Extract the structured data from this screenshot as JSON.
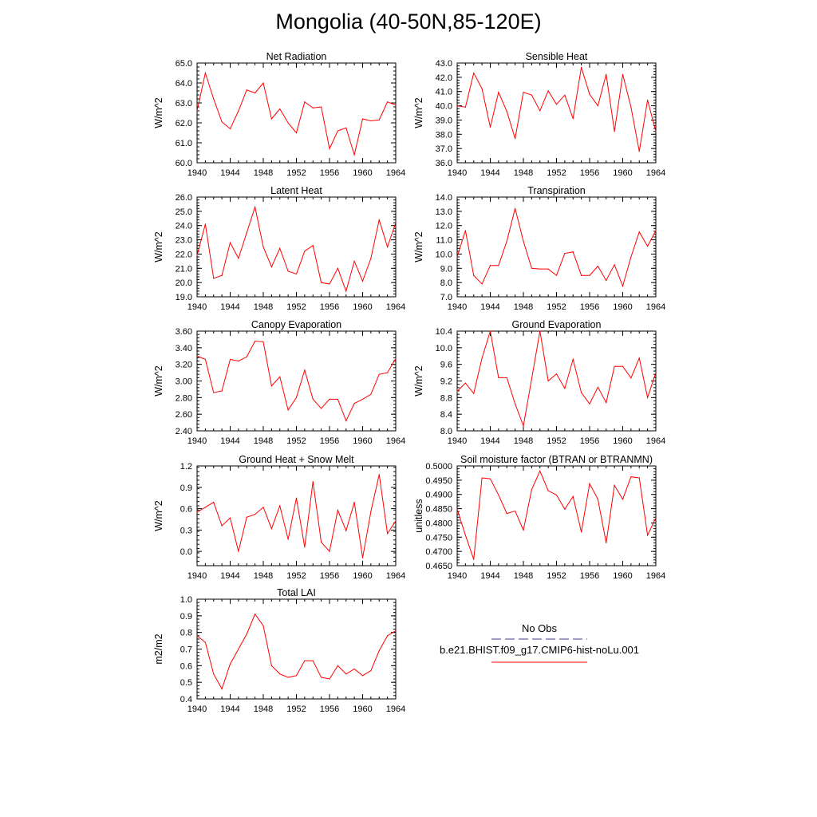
{
  "page_title": "Mongolia (40-50N,85-120E)",
  "legend": {
    "obs_label": "No Obs",
    "model_label": "b.e21.BHIST.f09_g17.CMIP6-hist-noLu.001",
    "obs_color": "#3c3c8c",
    "model_color": "#ff0000"
  },
  "colors": {
    "line": "#ff0000",
    "axis": "#000000"
  },
  "chart_data": [
    {
      "type": "line",
      "title": "Net Radiation",
      "ylabel": "W/m^2",
      "x": [
        1940,
        1941,
        1942,
        1943,
        1944,
        1945,
        1946,
        1947,
        1948,
        1949,
        1950,
        1951,
        1952,
        1953,
        1954,
        1955,
        1956,
        1957,
        1958,
        1959,
        1960,
        1961,
        1962,
        1963,
        1964
      ],
      "values": [
        62.6,
        64.5,
        63.2,
        62.05,
        61.7,
        62.6,
        63.65,
        63.5,
        64.0,
        62.2,
        62.7,
        62.0,
        61.5,
        63.05,
        62.75,
        62.8,
        60.7,
        61.6,
        61.75,
        60.4,
        62.2,
        62.1,
        62.15,
        63.05,
        62.9
      ],
      "xlim": [
        1940,
        1964
      ],
      "ylim": [
        60.0,
        65.0
      ],
      "xticks": [
        "1940",
        "1944",
        "1948",
        "1952",
        "1956",
        "1960",
        "1964"
      ],
      "yticks": [
        "60.0",
        "61.0",
        "62.0",
        "63.0",
        "64.0",
        "65.0"
      ]
    },
    {
      "type": "line",
      "title": "Sensible Heat",
      "ylabel": "W/m^2",
      "x": [
        1940,
        1941,
        1942,
        1943,
        1944,
        1945,
        1946,
        1947,
        1948,
        1949,
        1950,
        1951,
        1952,
        1953,
        1954,
        1955,
        1956,
        1957,
        1958,
        1959,
        1960,
        1961,
        1962,
        1963,
        1964
      ],
      "values": [
        40.0,
        39.9,
        42.3,
        41.2,
        38.5,
        40.95,
        39.6,
        37.7,
        40.95,
        40.75,
        39.65,
        41.05,
        40.1,
        40.75,
        39.1,
        42.7,
        40.8,
        40.0,
        42.2,
        38.2,
        42.2,
        39.9,
        36.8,
        40.4,
        38.2
      ],
      "xlim": [
        1940,
        1964
      ],
      "ylim": [
        36.0,
        43.0
      ],
      "xticks": [
        "1940",
        "1944",
        "1948",
        "1952",
        "1956",
        "1960",
        "1964"
      ],
      "yticks": [
        "36.0",
        "37.0",
        "38.0",
        "39.0",
        "40.0",
        "41.0",
        "42.0",
        "43.0"
      ]
    },
    {
      "type": "line",
      "title": "Latent Heat",
      "ylabel": "W/m^2",
      "x": [
        1940,
        1941,
        1942,
        1943,
        1944,
        1945,
        1946,
        1947,
        1948,
        1949,
        1950,
        1951,
        1952,
        1953,
        1954,
        1955,
        1956,
        1957,
        1958,
        1959,
        1960,
        1961,
        1962,
        1963,
        1964
      ],
      "values": [
        21.9,
        24.1,
        20.3,
        20.5,
        22.8,
        21.7,
        23.5,
        25.3,
        22.5,
        21.1,
        22.4,
        20.8,
        20.6,
        22.2,
        22.6,
        20.0,
        19.9,
        21.0,
        19.4,
        21.5,
        20.1,
        21.7,
        24.4,
        22.5,
        24.2
      ],
      "xlim": [
        1940,
        1964
      ],
      "ylim": [
        19.0,
        26.0
      ],
      "xticks": [
        "1940",
        "1944",
        "1948",
        "1952",
        "1956",
        "1960",
        "1964"
      ],
      "yticks": [
        "19.0",
        "20.0",
        "21.0",
        "22.0",
        "23.0",
        "24.0",
        "25.0",
        "26.0"
      ]
    },
    {
      "type": "line",
      "title": "Transpiration",
      "ylabel": "W/m^2",
      "x": [
        1940,
        1941,
        1942,
        1943,
        1944,
        1945,
        1946,
        1947,
        1948,
        1949,
        1950,
        1951,
        1952,
        1953,
        1954,
        1955,
        1956,
        1957,
        1958,
        1959,
        1960,
        1961,
        1962,
        1963,
        1964
      ],
      "values": [
        9.8,
        11.65,
        8.5,
        7.9,
        9.2,
        9.2,
        10.9,
        13.2,
        10.9,
        9.0,
        8.95,
        8.95,
        8.5,
        10.05,
        10.15,
        8.5,
        8.5,
        9.15,
        8.15,
        9.25,
        7.75,
        9.8,
        11.55,
        10.55,
        11.65
      ],
      "xlim": [
        1940,
        1964
      ],
      "ylim": [
        7.0,
        14.0
      ],
      "xticks": [
        "1940",
        "1944",
        "1948",
        "1952",
        "1956",
        "1960",
        "1964"
      ],
      "yticks": [
        "7.0",
        "8.0",
        "9.0",
        "10.0",
        "11.0",
        "12.0",
        "13.0",
        "14.0"
      ]
    },
    {
      "type": "line",
      "title": "Canopy Evaporation",
      "ylabel": "W/m^2",
      "x": [
        1940,
        1941,
        1942,
        1943,
        1944,
        1945,
        1946,
        1947,
        1948,
        1949,
        1950,
        1951,
        1952,
        1953,
        1954,
        1955,
        1956,
        1957,
        1958,
        1959,
        1960,
        1961,
        1962,
        1963,
        1964
      ],
      "values": [
        3.3,
        3.26,
        2.86,
        2.88,
        3.26,
        3.24,
        3.29,
        3.48,
        3.47,
        2.94,
        3.05,
        2.65,
        2.8,
        3.13,
        2.78,
        2.67,
        2.78,
        2.78,
        2.52,
        2.73,
        2.78,
        2.84,
        3.08,
        3.1,
        3.27
      ],
      "xlim": [
        1940,
        1964
      ],
      "ylim": [
        2.4,
        3.6
      ],
      "xticks": [
        "1940",
        "1944",
        "1948",
        "1952",
        "1956",
        "1960",
        "1964"
      ],
      "yticks": [
        "2.40",
        "2.60",
        "2.80",
        "3.00",
        "3.20",
        "3.40",
        "3.60"
      ]
    },
    {
      "type": "line",
      "title": "Ground Evaporation",
      "ylabel": "W/m^2",
      "x": [
        1940,
        1941,
        1942,
        1943,
        1944,
        1945,
        1946,
        1947,
        1948,
        1949,
        1950,
        1951,
        1952,
        1953,
        1954,
        1955,
        1956,
        1957,
        1958,
        1959,
        1960,
        1961,
        1962,
        1963,
        1964
      ],
      "values": [
        8.95,
        9.15,
        8.9,
        9.75,
        10.4,
        9.28,
        9.28,
        8.65,
        8.12,
        9.25,
        10.4,
        9.2,
        9.37,
        9.02,
        9.72,
        8.92,
        8.65,
        9.05,
        8.68,
        9.55,
        9.55,
        9.27,
        9.75,
        8.8,
        9.4
      ],
      "xlim": [
        1940,
        1964
      ],
      "ylim": [
        8.0,
        10.4
      ],
      "xticks": [
        "1940",
        "1944",
        "1948",
        "1952",
        "1956",
        "1960",
        "1964"
      ],
      "yticks": [
        "8.0",
        "8.4",
        "8.8",
        "9.2",
        "9.6",
        "10.0",
        "10.4"
      ]
    },
    {
      "type": "line",
      "title": "Ground Heat + Snow Melt",
      "ylabel": "W/m^2",
      "x": [
        1940,
        1941,
        1942,
        1943,
        1944,
        1945,
        1946,
        1947,
        1948,
        1949,
        1950,
        1951,
        1952,
        1953,
        1954,
        1955,
        1956,
        1957,
        1958,
        1959,
        1960,
        1961,
        1962,
        1963,
        1964
      ],
      "values": [
        0.55,
        0.62,
        0.69,
        0.36,
        0.47,
        0.0,
        0.48,
        0.52,
        0.62,
        0.32,
        0.64,
        0.17,
        0.75,
        0.06,
        0.98,
        0.13,
        0.0,
        0.58,
        0.29,
        0.69,
        -0.09,
        0.56,
        1.08,
        0.25,
        0.43
      ],
      "xlim": [
        1940,
        1964
      ],
      "ylim": [
        -0.2,
        1.2
      ],
      "xticks": [
        "1940",
        "1944",
        "1948",
        "1952",
        "1956",
        "1960",
        "1964"
      ],
      "yticks": [
        "0.0",
        "0.3",
        "0.6",
        "0.9",
        "1.2"
      ]
    },
    {
      "type": "line",
      "title": "Soil moisture factor (BTRAN or BTRANMN)",
      "ylabel": "unitless",
      "x": [
        1940,
        1941,
        1942,
        1943,
        1944,
        1945,
        1946,
        1947,
        1948,
        1949,
        1950,
        1951,
        1952,
        1953,
        1954,
        1955,
        1956,
        1957,
        1958,
        1959,
        1960,
        1961,
        1962,
        1963,
        1964
      ],
      "values": [
        0.4848,
        0.4757,
        0.4672,
        0.4958,
        0.4955,
        0.4898,
        0.4833,
        0.4842,
        0.4775,
        0.4917,
        0.4982,
        0.4913,
        0.4898,
        0.4848,
        0.4893,
        0.4768,
        0.4938,
        0.4883,
        0.473,
        0.4932,
        0.4883,
        0.4962,
        0.4958,
        0.4757,
        0.4818
      ],
      "xlim": [
        1940,
        1964
      ],
      "ylim": [
        0.465,
        0.5
      ],
      "xticks": [
        "1940",
        "1944",
        "1948",
        "1952",
        "1956",
        "1960",
        "1964"
      ],
      "yticks": [
        "0.4650",
        "0.4700",
        "0.4750",
        "0.4800",
        "0.4850",
        "0.4900",
        "0.4950",
        "0.5000"
      ]
    },
    {
      "type": "line",
      "title": "Total LAI",
      "ylabel": "m2/m2",
      "x": [
        1940,
        1941,
        1942,
        1943,
        1944,
        1945,
        1946,
        1947,
        1948,
        1949,
        1950,
        1951,
        1952,
        1953,
        1954,
        1955,
        1956,
        1957,
        1958,
        1959,
        1960,
        1961,
        1962,
        1963,
        1964
      ],
      "values": [
        0.78,
        0.74,
        0.55,
        0.46,
        0.61,
        0.7,
        0.79,
        0.91,
        0.84,
        0.6,
        0.55,
        0.53,
        0.54,
        0.63,
        0.63,
        0.53,
        0.52,
        0.6,
        0.55,
        0.58,
        0.54,
        0.57,
        0.69,
        0.78,
        0.81
      ],
      "xlim": [
        1940,
        1964
      ],
      "ylim": [
        0.4,
        1.0
      ],
      "xticks": [
        "1940",
        "1944",
        "1948",
        "1952",
        "1956",
        "1960",
        "1964"
      ],
      "yticks": [
        "0.4",
        "0.5",
        "0.6",
        "0.7",
        "0.8",
        "0.9",
        "1.0"
      ]
    }
  ]
}
